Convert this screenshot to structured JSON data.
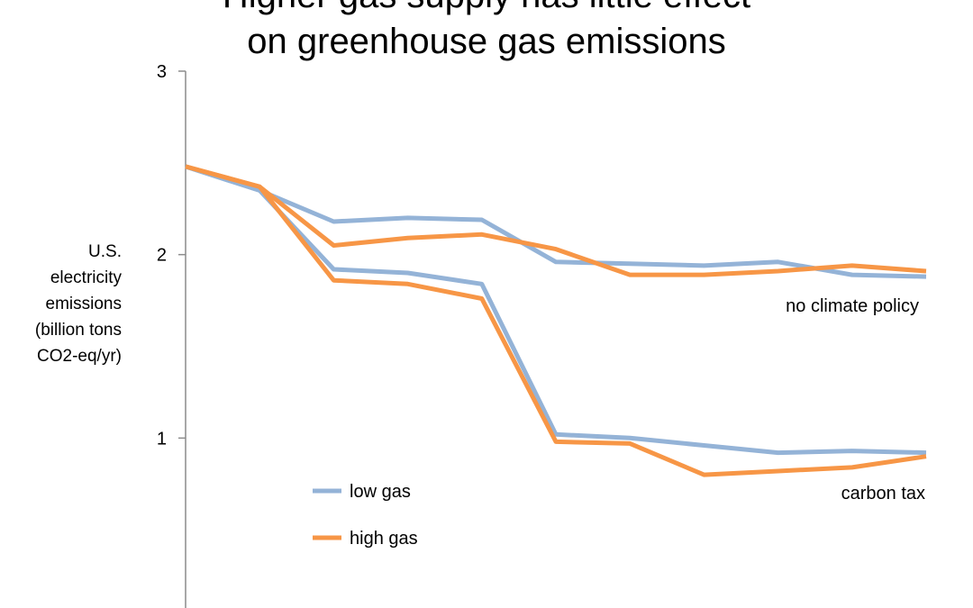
{
  "chart_data": {
    "type": "line",
    "title_lines": [
      "Higher gas supply has little effect",
      "on greenhouse gas emissions"
    ],
    "ylabel_lines": [
      "U.S.",
      "electricity",
      "emissions",
      "(billion tons",
      "CO2-eq/yr)"
    ],
    "ylim": [
      0,
      3
    ],
    "yticks": [
      1,
      2,
      3
    ],
    "ytick_labels": [
      "1",
      "2",
      "3"
    ],
    "grid": false,
    "legend_position": "bottom-left",
    "x": [
      0,
      1,
      2,
      3,
      4,
      5,
      6,
      7,
      8,
      9,
      10
    ],
    "series": [
      {
        "name": "low gas",
        "scenario": "no climate policy",
        "color": "#94b3d7",
        "values": [
          2.48,
          2.35,
          2.18,
          2.2,
          2.19,
          1.96,
          1.95,
          1.94,
          1.96,
          1.89,
          1.88
        ]
      },
      {
        "name": "high gas",
        "scenario": "no climate policy",
        "color": "#f79646",
        "values": [
          2.48,
          2.37,
          2.05,
          2.09,
          2.11,
          2.03,
          1.89,
          1.89,
          1.91,
          1.94,
          1.91
        ]
      },
      {
        "name": "low gas",
        "scenario": "carbon tax",
        "color": "#94b3d7",
        "values": [
          2.48,
          2.35,
          1.92,
          1.9,
          1.84,
          1.02,
          1.0,
          0.96,
          0.92,
          0.93,
          0.92
        ]
      },
      {
        "name": "high gas",
        "scenario": "carbon tax",
        "color": "#f79646",
        "values": [
          2.48,
          2.37,
          1.86,
          1.84,
          1.76,
          0.98,
          0.97,
          0.8,
          0.82,
          0.84,
          0.9
        ]
      }
    ],
    "legend": [
      {
        "label": "low gas",
        "color": "#94b3d7"
      },
      {
        "label": "high gas",
        "color": "#f79646"
      }
    ],
    "annotations": [
      {
        "key": "no-climate-policy",
        "text": "no climate policy"
      },
      {
        "key": "carbon-tax",
        "text": "carbon tax"
      }
    ]
  }
}
